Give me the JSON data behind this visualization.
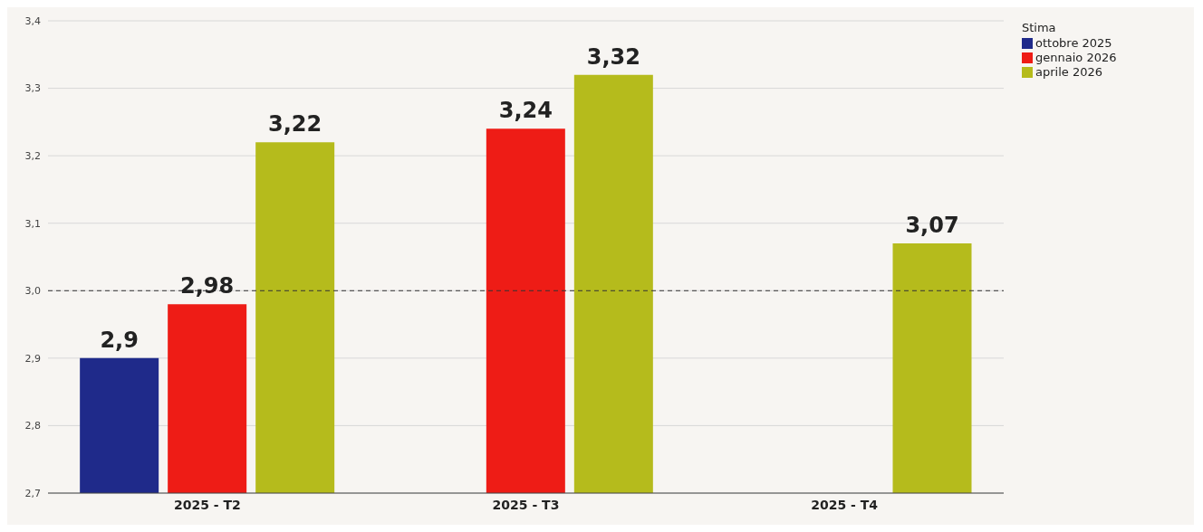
{
  "chart_data": {
    "type": "bar",
    "categories": [
      "2025 - T2",
      "2025 - T3",
      "2025 - T4"
    ],
    "series": [
      {
        "name": "ottobre 2025",
        "color": "#1f2a8a",
        "values": [
          2.9,
          null,
          null
        ],
        "value_labels": [
          "2,9",
          null,
          null
        ]
      },
      {
        "name": "gennaio 2026",
        "color": "#ee1c16",
        "values": [
          2.98,
          3.24,
          null
        ],
        "value_labels": [
          "2,98",
          "3,24",
          null
        ]
      },
      {
        "name": "aprile 2026",
        "color": "#b5bb1c",
        "values": [
          3.22,
          3.32,
          3.07
        ],
        "value_labels": [
          "3,22",
          "3,32",
          "3,07"
        ]
      }
    ],
    "ylim": [
      2.7,
      3.4
    ],
    "yticks": [
      {
        "value": 2.7,
        "label": "2,7"
      },
      {
        "value": 2.8,
        "label": "2,8"
      },
      {
        "value": 2.9,
        "label": "2,9"
      },
      {
        "value": 3.0,
        "label": "3,0"
      },
      {
        "value": 3.1,
        "label": "3,1"
      },
      {
        "value": 3.2,
        "label": "3,2"
      },
      {
        "value": 3.3,
        "label": "3,3"
      },
      {
        "value": 3.4,
        "label": "3,4"
      }
    ],
    "ref_lines": [
      {
        "axis": "y",
        "value": 3.0,
        "color": "#333333",
        "line_style": "dashed"
      }
    ],
    "grid": "y",
    "legend": "top right",
    "legend_title": "Stima"
  }
}
